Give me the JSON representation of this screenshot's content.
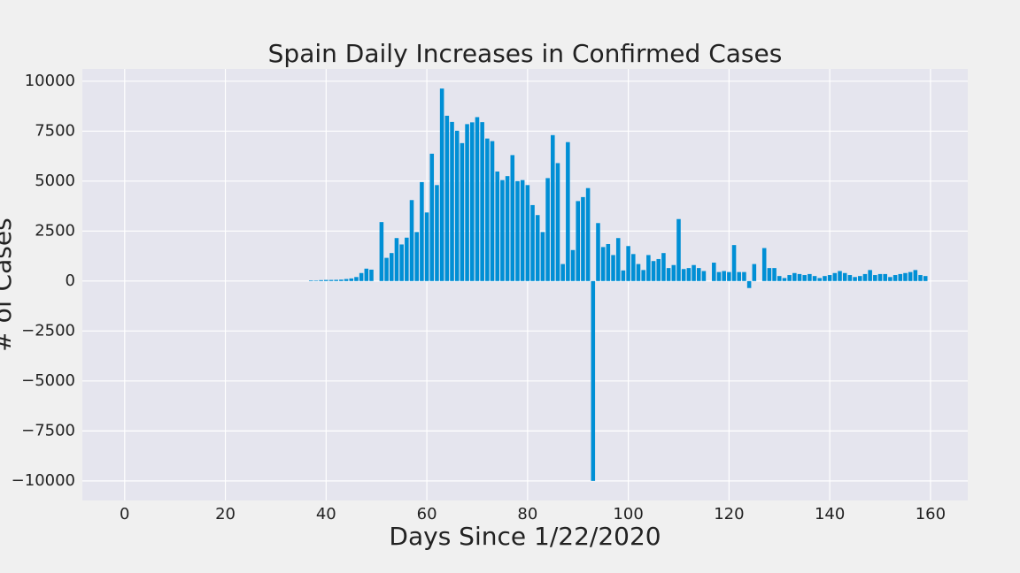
{
  "chart_data": {
    "type": "bar",
    "title": "Spain Daily Increases in Confirmed Cases",
    "xlabel": "Days Since 1/22/2020",
    "ylabel": "# of Cases",
    "color": "#008fd5",
    "grid": true,
    "xlim": [
      -8.4,
      167.4
    ],
    "ylim": [
      -10980,
      10610
    ],
    "xticks": [
      0,
      20,
      40,
      60,
      80,
      100,
      120,
      140,
      160
    ],
    "yticks": [
      {
        "value": -10000,
        "label": "−10000"
      },
      {
        "value": -7500,
        "label": "−7500"
      },
      {
        "value": -5000,
        "label": "−5000"
      },
      {
        "value": -2500,
        "label": "−2500"
      },
      0,
      2500,
      5000,
      7500,
      10000
    ],
    "x": [
      0,
      1,
      2,
      3,
      4,
      5,
      6,
      7,
      8,
      9,
      10,
      11,
      12,
      13,
      14,
      15,
      16,
      17,
      18,
      19,
      20,
      21,
      22,
      23,
      24,
      25,
      26,
      27,
      28,
      29,
      30,
      31,
      32,
      33,
      34,
      35,
      36,
      37,
      38,
      39,
      40,
      41,
      42,
      43,
      44,
      45,
      46,
      47,
      48,
      49,
      50,
      51,
      52,
      53,
      54,
      55,
      56,
      57,
      58,
      59,
      60,
      61,
      62,
      63,
      64,
      65,
      66,
      67,
      68,
      69,
      70,
      71,
      72,
      73,
      74,
      75,
      76,
      77,
      78,
      79,
      80,
      81,
      82,
      83,
      84,
      85,
      86,
      87,
      88,
      89,
      90,
      91,
      92,
      93,
      94,
      95,
      96,
      97,
      98,
      99,
      100,
      101,
      102,
      103,
      104,
      105,
      106,
      107,
      108,
      109,
      110,
      111,
      112,
      113,
      114,
      115,
      116,
      117,
      118,
      119,
      120,
      121,
      122,
      123,
      124,
      125,
      126,
      127,
      128,
      129,
      130,
      131,
      132,
      133,
      134,
      135,
      136,
      137,
      138,
      139,
      140,
      141,
      142,
      143,
      144,
      145,
      146,
      147,
      148,
      149,
      150,
      151,
      152,
      153,
      154,
      155,
      156,
      157,
      158,
      159
    ],
    "values": [
      0,
      0,
      0,
      0,
      0,
      0,
      0,
      0,
      0,
      0,
      0,
      0,
      0,
      0,
      0,
      0,
      0,
      0,
      0,
      0,
      0,
      0,
      0,
      0,
      0,
      0,
      0,
      0,
      0,
      0,
      0,
      0,
      0,
      0,
      0,
      0,
      0,
      30,
      25,
      45,
      55,
      55,
      60,
      70,
      100,
      130,
      200,
      400,
      620,
      570,
      0,
      2950,
      1160,
      1400,
      2150,
      1830,
      2170,
      4050,
      2450,
      4950,
      3430,
      6370,
      4800,
      9630,
      8270,
      7960,
      7520,
      6900,
      7850,
      7940,
      8200,
      7950,
      7130,
      7000,
      5480,
      5050,
      5250,
      6300,
      5000,
      5050,
      4800,
      3800,
      3300,
      2450,
      5150,
      7300,
      5900,
      850,
      6950,
      1550,
      4000,
      4200,
      4650,
      -10000,
      2900,
      1700,
      1850,
      1300,
      2150,
      530,
      1750,
      1350,
      850,
      550,
      1300,
      1000,
      1100,
      1400,
      650,
      800,
      3100,
      600,
      650,
      800,
      650,
      500,
      0,
      920,
      450,
      500,
      450,
      1800,
      450,
      450,
      -350,
      850,
      0,
      1650,
      650,
      650,
      250,
      150,
      300,
      400,
      350,
      300,
      350,
      250,
      150,
      250,
      300,
      400,
      500,
      400,
      300,
      200,
      250,
      350,
      550,
      300,
      350,
      350,
      200,
      300,
      350,
      400,
      450,
      550,
      300,
      250
    ]
  }
}
